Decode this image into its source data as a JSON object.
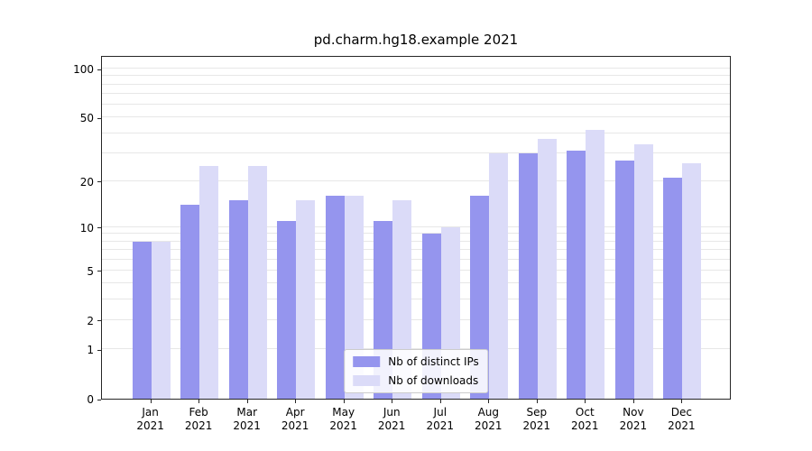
{
  "chart_data": {
    "type": "bar",
    "title": "pd.charm.hg18.example 2021",
    "x_year": "2021",
    "categories": [
      "Jan",
      "Feb",
      "Mar",
      "Apr",
      "May",
      "Jun",
      "Jul",
      "Aug",
      "Sep",
      "Oct",
      "Nov",
      "Dec"
    ],
    "series": [
      {
        "name": "Nb of distinct IPs",
        "color": "#9595ee",
        "values": [
          8,
          14,
          15,
          11,
          16,
          11,
          9,
          16,
          30,
          31,
          27,
          21
        ]
      },
      {
        "name": "Nb of downloads",
        "color": "#dbdbf8",
        "values": [
          8,
          25,
          25,
          15,
          16,
          15,
          10,
          30,
          37,
          42,
          34,
          26
        ]
      }
    ],
    "xlabel": "",
    "ylabel": "",
    "y_ticks": [
      0,
      1,
      2,
      5,
      10,
      20,
      50,
      100
    ],
    "y_scale": "log1p",
    "ylim": [
      0,
      121
    ],
    "grid": true,
    "legend_position": "lower center"
  },
  "style": {
    "grid_color": "#e7e7e7",
    "spine_color": "#262626",
    "background": "#ffffff"
  }
}
